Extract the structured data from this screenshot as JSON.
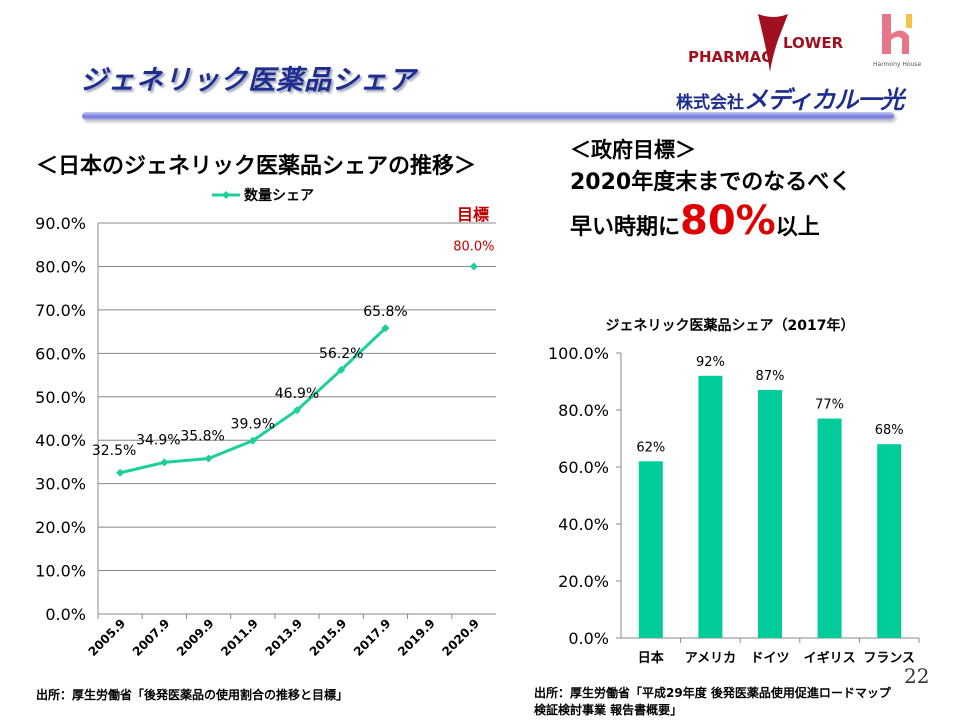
{
  "slide": {
    "title": "ジェネリック医薬品シェア",
    "page_number": "22"
  },
  "logos": {
    "pharma_left": "PHARMAC",
    "pharma_right": "LOWER",
    "harmony": "Harmony House",
    "company_prefix": "株式会社",
    "company_brand": "メディカル一光"
  },
  "left_panel": {
    "heading": "＜日本のジェネリック医薬品シェアの推移＞",
    "source": "出所：厚生労働省「後発医薬品の使用割合の推移と目標」"
  },
  "right_panel": {
    "gov_line1": "＜政府目標＞",
    "gov_line2": "2020年度末までのなるべく",
    "gov_line3_pre": "早い時期に",
    "gov_line3_pct": "80%",
    "gov_line3_post": "以上",
    "source_line1": "出所：厚生労働省「平成29年度 後発医薬品使用促進ロードマップ",
    "source_line2": "検証検討事業 報告書概要」"
  },
  "colors": {
    "series": "#1ecf9a",
    "target": "#c00000",
    "title": "#1f2d8f",
    "bar": "#00cc99"
  },
  "chart_data": [
    {
      "type": "line",
      "legend": "数量シェア",
      "legend_position": "top",
      "categories": [
        "2005.9",
        "2007.9",
        "2009.9",
        "2011.9",
        "2013.9",
        "2015.9",
        "2017.9",
        "2019.9",
        "2020.9"
      ],
      "series": [
        {
          "name": "数量シェア",
          "values": [
            32.5,
            34.9,
            35.8,
            39.9,
            46.9,
            56.2,
            65.8,
            null,
            80.0
          ],
          "labels": [
            "32.5%",
            "34.9%",
            "35.8%",
            "39.9%",
            "46.9%",
            "56.2%",
            "65.8%",
            "",
            "80.0%"
          ]
        }
      ],
      "annotation": "目標",
      "ylim": [
        0,
        90
      ],
      "yticks": [
        "0.0%",
        "10.0%",
        "20.0%",
        "30.0%",
        "40.0%",
        "50.0%",
        "60.0%",
        "70.0%",
        "80.0%",
        "90.0%"
      ],
      "grid": true
    },
    {
      "type": "bar",
      "title": "ジェネリック医薬品シェア（2017年）",
      "categories": [
        "日本",
        "アメリカ",
        "ドイツ",
        "イギリス",
        "フランス"
      ],
      "values": [
        62,
        92,
        87,
        77,
        68
      ],
      "labels": [
        "62%",
        "92%",
        "87%",
        "77%",
        "68%"
      ],
      "ylim": [
        0,
        100
      ],
      "yticks": [
        "0.0%",
        "20.0%",
        "40.0%",
        "60.0%",
        "80.0%",
        "100.0%"
      ],
      "grid": false
    }
  ]
}
